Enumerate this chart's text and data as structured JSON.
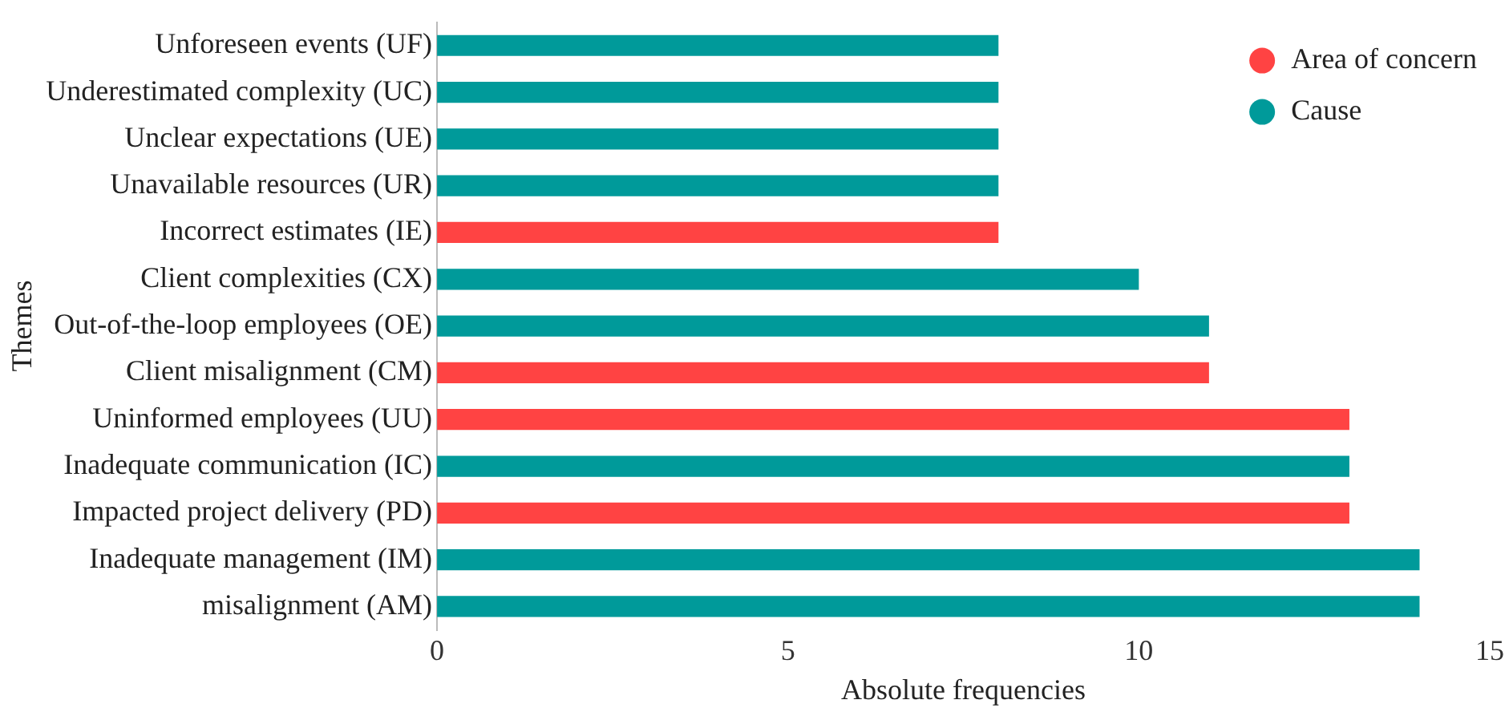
{
  "chart_data": {
    "type": "bar",
    "orientation": "horizontal",
    "stacked": true,
    "xlabel": "Absolute frequencies",
    "ylabel": "Themes",
    "categories": [
      "Unforeseen events (UF)",
      "Underestimated complexity (UC)",
      "Unclear expectations (UE)",
      "Unavailable resources (UR)",
      "Incorrect estimates (IE)",
      "Client complexities (CX)",
      "Out-of-the-loop employees (OE)",
      "Client misalignment (CM)",
      "Uninformed employees (UU)",
      "Inadequate communication (IC)",
      "Impacted project delivery (PD)",
      "Inadequate management (IM)",
      "misalignment (AM)"
    ],
    "series": [
      {
        "name": "Area of concern",
        "color": "#ff4343",
        "values": [
          null,
          null,
          null,
          null,
          8,
          null,
          null,
          11,
          13,
          null,
          13,
          null,
          null
        ]
      },
      {
        "name": "Cause",
        "color": "#009a9a",
        "values": [
          8,
          8,
          8,
          8,
          null,
          10,
          11,
          null,
          null,
          13,
          null,
          14,
          14
        ]
      }
    ],
    "xlim": [
      0,
      15
    ],
    "xticks": [
      0,
      5,
      10,
      15
    ],
    "grid": false,
    "legend": "top right"
  }
}
